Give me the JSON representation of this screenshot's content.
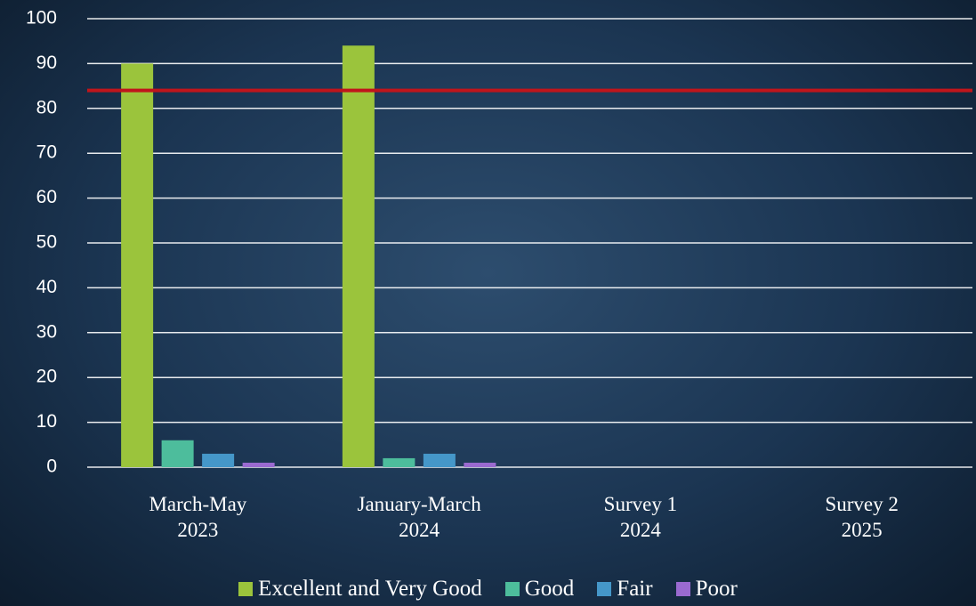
{
  "chart_data": {
    "type": "bar",
    "categories": [
      "March-May\n2023",
      "January-March\n2024",
      "Survey 1\n2024",
      "Survey 2\n2025"
    ],
    "series": [
      {
        "name": "Excellent and Very Good",
        "color": "#9bc43c",
        "values": [
          90,
          94,
          null,
          null
        ]
      },
      {
        "name": "Good",
        "color": "#4dbd9c",
        "values": [
          6,
          2,
          null,
          null
        ]
      },
      {
        "name": "Fair",
        "color": "#4597c9",
        "values": [
          3,
          3,
          null,
          null
        ]
      },
      {
        "name": "Poor",
        "color": "#9a6ad0",
        "values": [
          1,
          1,
          null,
          null
        ]
      }
    ],
    "ylim": [
      0,
      100
    ],
    "yticks": [
      0,
      10,
      20,
      30,
      40,
      50,
      60,
      70,
      80,
      90,
      100
    ],
    "grid": true,
    "reference_line": {
      "value": 84,
      "color": "#c0151b"
    },
    "legend": "bottom"
  }
}
